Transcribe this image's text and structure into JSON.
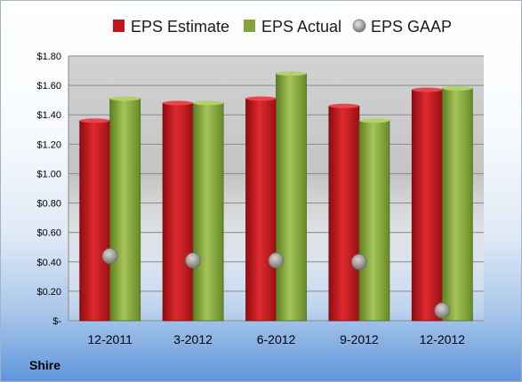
{
  "company": "Shire",
  "legend": [
    {
      "label": "EPS Estimate",
      "color": "#c0161b",
      "marker": "square"
    },
    {
      "label": "EPS Actual",
      "color": "#83a43c",
      "marker": "square"
    },
    {
      "label": "EPS GAAP",
      "color": "#a8a8a8",
      "marker": "circle"
    }
  ],
  "chart_data": {
    "type": "bar",
    "title": "",
    "xlabel": "",
    "ylabel": "",
    "categories": [
      "12-2011",
      "3-2012",
      "6-2012",
      "9-2012",
      "12-2012"
    ],
    "series": [
      {
        "name": "EPS Estimate",
        "type": "bar",
        "color": "#c0161b",
        "values": [
          1.36,
          1.48,
          1.51,
          1.46,
          1.57
        ]
      },
      {
        "name": "EPS Actual",
        "type": "bar",
        "color": "#83a43c",
        "values": [
          1.51,
          1.48,
          1.68,
          1.36,
          1.58
        ]
      },
      {
        "name": "EPS GAAP",
        "type": "scatter",
        "color": "#a8a8a8",
        "values": [
          0.44,
          0.41,
          0.41,
          0.4,
          0.07
        ]
      }
    ],
    "ylim": [
      0,
      1.8
    ],
    "yticks": [
      0,
      0.2,
      0.4,
      0.6,
      0.8,
      1.0,
      1.2,
      1.4,
      1.6,
      1.8
    ],
    "ytick_labels": [
      "$-",
      "$0.20",
      "$0.40",
      "$0.60",
      "$0.80",
      "$1.00",
      "$1.20",
      "$1.40",
      "$1.60",
      "$1.80"
    ],
    "grid": true,
    "legend_position": "top"
  }
}
